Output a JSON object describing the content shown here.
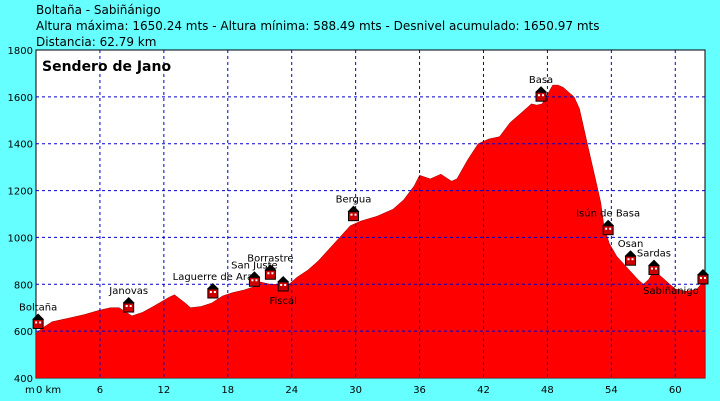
{
  "header": {
    "route": "Boltaña - Sabiñánigo",
    "stats": "Altura máxima: 1650.24 mts - Altura mínima: 588.49 mts - Desnivel acumulado: 1650.97 mts",
    "distance": "Distancia: 62.79 km"
  },
  "colors": {
    "background": "#66ffff",
    "plot_bg": "#ffffff",
    "fill": "#ff0000",
    "grid": "#0000cc"
  },
  "chart_data": {
    "type": "area",
    "title": "Sendero de Jano",
    "xlabel": "",
    "ylabel": "",
    "x_unit_label": "m",
    "x_first_tick_label": "0 km",
    "xlim": [
      0,
      62.79
    ],
    "ylim": [
      400,
      1800
    ],
    "x_ticks": [
      0,
      6,
      12,
      18,
      24,
      30,
      36,
      42,
      48,
      54,
      60
    ],
    "y_ticks": [
      400,
      600,
      800,
      1000,
      1200,
      1400,
      1600,
      1800
    ],
    "grid": true,
    "profile": [
      [
        0,
        590
      ],
      [
        0.5,
        610
      ],
      [
        1.5,
        640
      ],
      [
        3,
        655
      ],
      [
        4.5,
        670
      ],
      [
        6,
        690
      ],
      [
        7,
        700
      ],
      [
        7.8,
        700
      ],
      [
        9,
        665
      ],
      [
        10,
        680
      ],
      [
        11,
        705
      ],
      [
        12.5,
        745
      ],
      [
        13,
        755
      ],
      [
        14,
        720
      ],
      [
        14.5,
        700
      ],
      [
        15.5,
        705
      ],
      [
        16.5,
        720
      ],
      [
        17.5,
        750
      ],
      [
        18.5,
        765
      ],
      [
        19.5,
        775
      ],
      [
        20.5,
        790
      ],
      [
        21,
        810
      ],
      [
        22,
        800
      ],
      [
        23,
        800
      ],
      [
        23.5,
        790
      ],
      [
        24.5,
        830
      ],
      [
        25.5,
        860
      ],
      [
        26.5,
        900
      ],
      [
        27.5,
        950
      ],
      [
        28.5,
        1000
      ],
      [
        29.5,
        1050
      ],
      [
        30.5,
        1070
      ],
      [
        32,
        1090
      ],
      [
        33.5,
        1120
      ],
      [
        34.5,
        1160
      ],
      [
        35.5,
        1220
      ],
      [
        36,
        1265
      ],
      [
        37,
        1250
      ],
      [
        38,
        1270
      ],
      [
        39,
        1240
      ],
      [
        39.5,
        1250
      ],
      [
        40.5,
        1330
      ],
      [
        41.5,
        1400
      ],
      [
        42.5,
        1420
      ],
      [
        43.5,
        1430
      ],
      [
        44.5,
        1490
      ],
      [
        45.5,
        1530
      ],
      [
        46.5,
        1570
      ],
      [
        47,
        1565
      ],
      [
        47.5,
        1570
      ],
      [
        48.5,
        1650
      ],
      [
        49,
        1650
      ],
      [
        49.5,
        1640
      ],
      [
        50,
        1620
      ],
      [
        50.5,
        1600
      ],
      [
        51,
        1550
      ],
      [
        51.5,
        1450
      ],
      [
        52,
        1350
      ],
      [
        52.5,
        1250
      ],
      [
        53,
        1150
      ],
      [
        53.3,
        1050
      ],
      [
        53.8,
        975
      ],
      [
        54.5,
        920
      ],
      [
        55.5,
        870
      ],
      [
        56.5,
        820
      ],
      [
        57,
        800
      ],
      [
        57.5,
        820
      ],
      [
        58,
        860
      ],
      [
        58.5,
        840
      ],
      [
        59.5,
        800
      ],
      [
        60,
        780
      ],
      [
        61,
        770
      ],
      [
        62,
        778
      ],
      [
        62.79,
        820
      ]
    ],
    "places": [
      {
        "name": "Boltaña",
        "km": 0.2,
        "alt": 620,
        "label_pos": "above"
      },
      {
        "name": "Janovas",
        "km": 8.7,
        "alt": 690,
        "label_pos": "above"
      },
      {
        "name": "Laguerre de Ara",
        "km": 16.6,
        "alt": 750,
        "label_pos": "above"
      },
      {
        "name": "San Juste",
        "km": 20.5,
        "alt": 800,
        "label_pos": "above"
      },
      {
        "name": "Borrastre",
        "km": 22,
        "alt": 830,
        "label_pos": "above"
      },
      {
        "name": "Fiscal",
        "km": 23.2,
        "alt": 780,
        "label_pos": "below"
      },
      {
        "name": "Bergua",
        "km": 29.8,
        "alt": 1080,
        "label_pos": "above"
      },
      {
        "name": "Basa",
        "km": 47.4,
        "alt": 1590,
        "label_pos": "above"
      },
      {
        "name": "Isún de Basa",
        "km": 53.7,
        "alt": 1020,
        "label_pos": "above"
      },
      {
        "name": "Osan",
        "km": 55.8,
        "alt": 890,
        "label_pos": "above"
      },
      {
        "name": "Sardas",
        "km": 58,
        "alt": 850,
        "label_pos": "above"
      },
      {
        "name": "Sabiñánigo",
        "km": 62.6,
        "alt": 810,
        "label_pos": "below-left"
      }
    ]
  }
}
